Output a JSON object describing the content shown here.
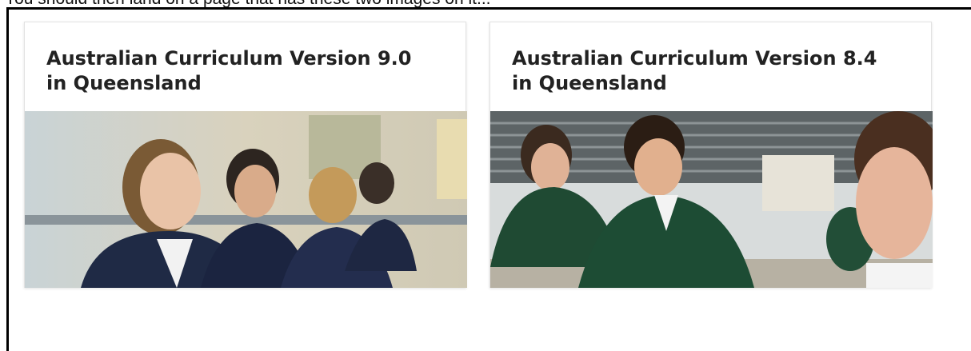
{
  "header": {
    "intro": "You should then land on a page that has these two images on it..."
  },
  "cards": [
    {
      "title": "Australian Curriculum Version 9.0 in Queensland"
    },
    {
      "title": "Australian Curriculum Version 8.4 in Queensland"
    }
  ]
}
